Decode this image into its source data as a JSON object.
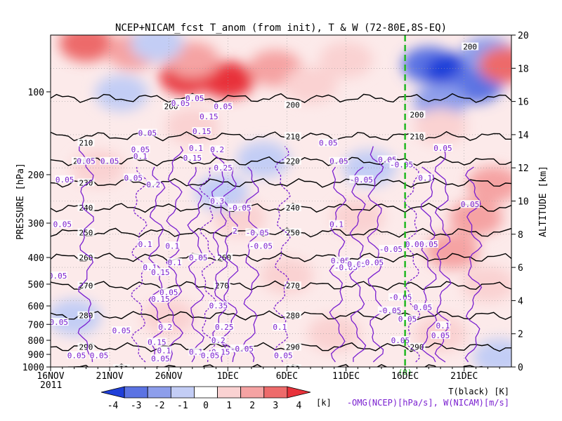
{
  "chart_data": {
    "type": "heatmap",
    "title": "NCEP+NICAM_fcst T_anom (from init), T & W  (72-80E,8S-EQ)",
    "xlabel": "",
    "ylabel_left": "PRESSURE [hPa]",
    "ylabel_right": "ALTITUDE [km]",
    "x_ticks": [
      "16NOV",
      "21NOV",
      "26NOV",
      "1DEC",
      "6DEC",
      "11DEC",
      "16DEC",
      "21DEC"
    ],
    "x_year": "2011",
    "x_range_days": [
      0,
      39
    ],
    "y_pressure_ticks": [
      100,
      200,
      300,
      400,
      500,
      600,
      700,
      800,
      900,
      1000
    ],
    "y_pressure_labels": [
      "100",
      "200",
      "300",
      "400",
      "500",
      "600",
      "700",
      "800",
      "900",
      "1000"
    ],
    "y_altitude_ticks": [
      0,
      2,
      4,
      6,
      8,
      10,
      12,
      14,
      16,
      18,
      20
    ],
    "y_altitude_labels": [
      "0",
      "2",
      "4",
      "6",
      "8",
      "10",
      "12",
      "14",
      "16",
      "18",
      "20"
    ],
    "init_marker": {
      "day": 30,
      "label": "(0)"
    },
    "shading": {
      "variable": "T anomaly",
      "unit": "[k]",
      "levels": [
        -4,
        -3,
        -2,
        -1,
        0,
        1,
        2,
        3,
        4
      ],
      "level_labels": [
        "-4",
        "-3",
        "-2",
        "-1",
        "0",
        "1",
        "2",
        "3",
        "4"
      ],
      "colors": [
        "#1f3fd9",
        "#5b73e3",
        "#8d9eeb",
        "#c3cdf5",
        "#ffffff",
        "#fad2d2",
        "#f5a3a3",
        "#ed6b6b",
        "#e8323a"
      ],
      "patches": [
        {
          "day": 11.5,
          "alt": 17.5,
          "value": 4
        },
        {
          "day": 15,
          "alt": 17.3,
          "value": 4
        },
        {
          "day": 12,
          "alt": 18.5,
          "value": 2
        },
        {
          "day": 3,
          "alt": 19.5,
          "value": 3
        },
        {
          "day": 7,
          "alt": 19,
          "value": 2
        },
        {
          "day": 19,
          "alt": 18,
          "value": 2
        },
        {
          "day": 22,
          "alt": 17,
          "value": 1
        },
        {
          "day": 25,
          "alt": 18.5,
          "value": 1
        },
        {
          "day": 9,
          "alt": 19.5,
          "value": -1
        },
        {
          "day": 12,
          "alt": 14.5,
          "value": 1
        },
        {
          "day": 4,
          "alt": 12,
          "value": 1
        },
        {
          "day": 16,
          "alt": 9,
          "value": 1
        },
        {
          "day": 26,
          "alt": 9,
          "value": 1
        },
        {
          "day": 20,
          "alt": 5.5,
          "value": 1
        },
        {
          "day": 10,
          "alt": 3,
          "value": 1
        },
        {
          "day": 24,
          "alt": 2,
          "value": 1
        },
        {
          "day": 6,
          "alt": 16.5,
          "value": -1
        },
        {
          "day": 18,
          "alt": 12.5,
          "value": -1
        },
        {
          "day": 14.5,
          "alt": 10.5,
          "value": -1
        },
        {
          "day": 2,
          "alt": 3,
          "value": -1
        },
        {
          "day": 27,
          "alt": 12,
          "value": -1
        },
        {
          "day": 32,
          "alt": 18.2,
          "value": -3
        },
        {
          "day": 34,
          "alt": 17.8,
          "value": -4
        },
        {
          "day": 36,
          "alt": 17,
          "value": -3
        },
        {
          "day": 33,
          "alt": 16,
          "value": -2
        },
        {
          "day": 37,
          "alt": 18.8,
          "value": -2
        },
        {
          "day": 38.5,
          "alt": 18.2,
          "value": 3
        },
        {
          "day": 33,
          "alt": 14.5,
          "value": 1
        },
        {
          "day": 36,
          "alt": 9,
          "value": 2
        },
        {
          "day": 37.5,
          "alt": 11,
          "value": 2
        },
        {
          "day": 34,
          "alt": 7,
          "value": 2
        },
        {
          "day": 37,
          "alt": 5,
          "value": 1
        },
        {
          "day": 33,
          "alt": 2,
          "value": 1
        },
        {
          "day": 38,
          "alt": 0.6,
          "value": -1
        }
      ]
    },
    "temperature_contours": {
      "name": "T(black) [K]",
      "levels": [
        200,
        210,
        220,
        230,
        240,
        250,
        260,
        270,
        280,
        290,
        300
      ],
      "altitude_km": [
        16.2,
        13.9,
        12.4,
        11.1,
        9.6,
        8.1,
        6.6,
        4.9,
        3.1,
        1.2,
        -0.1
      ],
      "labels": [
        {
          "day": 10.2,
          "alt": 15.7,
          "text": "200"
        },
        {
          "day": 20.5,
          "alt": 15.8,
          "text": "200"
        },
        {
          "day": 31,
          "alt": 15.2,
          "text": "200"
        },
        {
          "day": 35.5,
          "alt": 19.3,
          "text": "200"
        },
        {
          "day": 3,
          "alt": 13.5,
          "text": "210"
        },
        {
          "day": 20.5,
          "alt": 13.9,
          "text": "210"
        },
        {
          "day": 31,
          "alt": 13.9,
          "text": "210"
        },
        {
          "day": 2.5,
          "alt": 12.4,
          "text": "220"
        },
        {
          "day": 20.5,
          "alt": 12.4,
          "text": "220"
        },
        {
          "day": 3,
          "alt": 11.1,
          "text": "230"
        },
        {
          "day": 3,
          "alt": 9.6,
          "text": "240"
        },
        {
          "day": 20.5,
          "alt": 9.6,
          "text": "240"
        },
        {
          "day": 3,
          "alt": 8.1,
          "text": "250"
        },
        {
          "day": 20.5,
          "alt": 8.1,
          "text": "250"
        },
        {
          "day": 3,
          "alt": 6.6,
          "text": "260"
        },
        {
          "day": 14.7,
          "alt": 6.6,
          "text": "260"
        },
        {
          "day": 3,
          "alt": 4.9,
          "text": "270"
        },
        {
          "day": 14.5,
          "alt": 4.9,
          "text": "270"
        },
        {
          "day": 20.5,
          "alt": 4.9,
          "text": "270"
        },
        {
          "day": 3,
          "alt": 3.1,
          "text": "280"
        },
        {
          "day": 20.5,
          "alt": 3.1,
          "text": "280"
        },
        {
          "day": 3,
          "alt": 1.2,
          "text": "290"
        },
        {
          "day": 20.5,
          "alt": 1.2,
          "text": "290"
        },
        {
          "day": 31,
          "alt": 1.2,
          "text": "290"
        },
        {
          "day": 6,
          "alt": -0.1,
          "text": "300"
        },
        {
          "day": 20.5,
          "alt": -0.1,
          "text": "300"
        }
      ]
    },
    "omega_contours": {
      "name": "-OMG(NCEP)[hPa/s], W(NICAM)[m/s]",
      "labels": [
        {
          "day": 1.2,
          "alt": 11.3,
          "text": "0.05"
        },
        {
          "day": 1,
          "alt": 8.6,
          "text": "0.05"
        },
        {
          "day": 0.6,
          "alt": 5.5,
          "text": "0.05"
        },
        {
          "day": 0.7,
          "alt": 2.7,
          "text": "0.05"
        },
        {
          "day": 2.2,
          "alt": 0.7,
          "text": "0.05"
        },
        {
          "day": 4.1,
          "alt": 0.7,
          "text": "0.05"
        },
        {
          "day": 6,
          "alt": 2.2,
          "text": "0.05"
        },
        {
          "day": 3,
          "alt": 12.4,
          "text": "0.05"
        },
        {
          "day": 5,
          "alt": 12.4,
          "text": "0.05"
        },
        {
          "day": 7,
          "alt": 11.4,
          "text": "0.05"
        },
        {
          "day": 7.6,
          "alt": 12.7,
          "text": "0.1"
        },
        {
          "day": 7.6,
          "alt": 13.1,
          "text": "0.05"
        },
        {
          "day": 8.2,
          "alt": 14.1,
          "text": "0.05"
        },
        {
          "day": 8.7,
          "alt": 11,
          "text": "0.2"
        },
        {
          "day": 8,
          "alt": 7.4,
          "text": "0.1"
        },
        {
          "day": 8.4,
          "alt": 6,
          "text": "0.1"
        },
        {
          "day": 9.3,
          "alt": 5.7,
          "text": "0.15"
        },
        {
          "day": 9.3,
          "alt": 4.1,
          "text": "0.15"
        },
        {
          "day": 10,
          "alt": 4.5,
          "text": "0.05"
        },
        {
          "day": 9.7,
          "alt": 2.4,
          "text": "0.2"
        },
        {
          "day": 9,
          "alt": 1.5,
          "text": "0.15"
        },
        {
          "day": 9.6,
          "alt": 1,
          "text": "0.1"
        },
        {
          "day": 9.3,
          "alt": 0.5,
          "text": "0.05"
        },
        {
          "day": 10.3,
          "alt": 7.3,
          "text": "0.1"
        },
        {
          "day": 10.5,
          "alt": 6.3,
          "text": "0.1"
        },
        {
          "day": 11,
          "alt": 15.9,
          "text": "0.05"
        },
        {
          "day": 12.2,
          "alt": 16.2,
          "text": "0.05"
        },
        {
          "day": 12.3,
          "alt": 13.2,
          "text": "0.1"
        },
        {
          "day": 12.8,
          "alt": 14.2,
          "text": "0.15"
        },
        {
          "day": 12,
          "alt": 12.6,
          "text": "0.15"
        },
        {
          "day": 12.3,
          "alt": 0.9,
          "text": "0.1"
        },
        {
          "day": 12.5,
          "alt": 6.6,
          "text": "0.05"
        },
        {
          "day": 13.4,
          "alt": 15.1,
          "text": "0.15"
        },
        {
          "day": 14.6,
          "alt": 15.7,
          "text": "0.05"
        },
        {
          "day": 14.1,
          "alt": 13.1,
          "text": "0.2"
        },
        {
          "day": 14.6,
          "alt": 12,
          "text": "0.25"
        },
        {
          "day": 14.1,
          "alt": 10,
          "text": "0.3"
        },
        {
          "day": 14.2,
          "alt": 3.7,
          "text": "0.35"
        },
        {
          "day": 14.7,
          "alt": 2.4,
          "text": "0.25"
        },
        {
          "day": 14.2,
          "alt": 1.6,
          "text": "0.2"
        },
        {
          "day": 14.4,
          "alt": 0.9,
          "text": "0.15"
        },
        {
          "day": 13.5,
          "alt": 0.7,
          "text": "0.05"
        },
        {
          "day": 16,
          "alt": 9.6,
          "text": "-0.05"
        },
        {
          "day": 15.6,
          "alt": 8.2,
          "text": "2"
        },
        {
          "day": 16.2,
          "alt": 1.1,
          "text": "-0.05"
        },
        {
          "day": 17.5,
          "alt": 8.1,
          "text": "-0.05"
        },
        {
          "day": 17.8,
          "alt": 7.3,
          "text": "-0.05"
        },
        {
          "day": 19.4,
          "alt": 2.4,
          "text": "0.1"
        },
        {
          "day": 19.7,
          "alt": 0.7,
          "text": "0.05"
        },
        {
          "day": 23.5,
          "alt": 13.5,
          "text": "0.05"
        },
        {
          "day": 28.5,
          "alt": 12.5,
          "text": "0.05"
        },
        {
          "day": 24.4,
          "alt": 12.4,
          "text": "0.05"
        },
        {
          "day": 26.3,
          "alt": 11.3,
          "text": "-0.05"
        },
        {
          "day": 29.7,
          "alt": 12.2,
          "text": "-0.05"
        },
        {
          "day": 24.2,
          "alt": 8.6,
          "text": "0.1"
        },
        {
          "day": 24.5,
          "alt": 6.4,
          "text": "0.05"
        },
        {
          "day": 25,
          "alt": 6,
          "text": "-0.05"
        },
        {
          "day": 25.9,
          "alt": 6.2,
          "text": "0.05"
        },
        {
          "day": 27.2,
          "alt": 6.3,
          "text": "-0.05"
        },
        {
          "day": 28.8,
          "alt": 7.1,
          "text": "-0.05"
        },
        {
          "day": 29.6,
          "alt": 4.2,
          "text": "-0.05"
        },
        {
          "day": 28.7,
          "alt": 3.4,
          "text": "-0.05"
        },
        {
          "day": 30.2,
          "alt": 2.9,
          "text": "0.05"
        },
        {
          "day": 29.6,
          "alt": 1.6,
          "text": "0.05"
        },
        {
          "day": 30.8,
          "alt": 7.4,
          "text": "0.05"
        },
        {
          "day": 32,
          "alt": 7.4,
          "text": "0.05"
        },
        {
          "day": 31.7,
          "alt": 11.4,
          "text": "0.1"
        },
        {
          "day": 33.2,
          "alt": 13.2,
          "text": "0.05"
        },
        {
          "day": 35.5,
          "alt": 9.8,
          "text": "0.05"
        },
        {
          "day": 31.5,
          "alt": 3.6,
          "text": "0.05"
        },
        {
          "day": 33,
          "alt": 1.9,
          "text": "0.05"
        },
        {
          "day": 33.2,
          "alt": 2.5,
          "text": "0.1"
        }
      ]
    },
    "legend_unit": "[k]",
    "legend_t_label": "T(black) [K]",
    "legend_w_label": "-OMG(NCEP)[hPa/s], W(NICAM)[m/s]"
  }
}
